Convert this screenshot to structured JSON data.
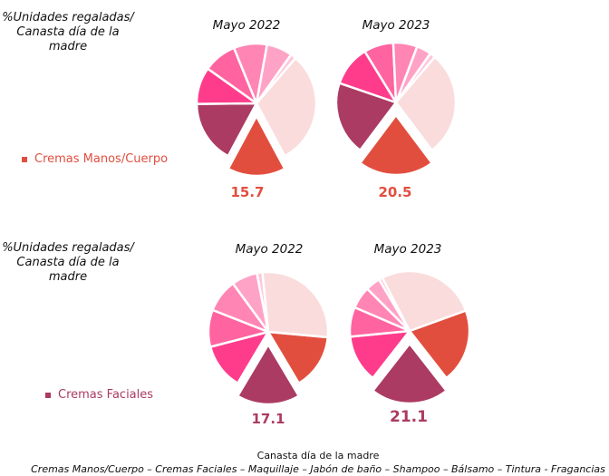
{
  "colors": {
    "Cremas Manos/Cuerpo": "#e24e3e",
    "Cremas Faciales": "#ab3b63",
    "Maquillaje": "#ff3c8c",
    "Jabón de baño": "#ff63a0",
    "Shampoo": "#ff85b4",
    "Bálsamo": "#ffa3c6",
    "Tintura": "#ffc7dd",
    "Fragancias": "#fadcdc"
  },
  "panels": [
    {
      "side_title": "%Unidades regaladas/ Canasta día de la madre",
      "legend": "Cremas Manos/Cuerpo"
    },
    {
      "side_title": "%Unidades regaladas/ Canasta día de la madre",
      "legend": "Cremas Faciales"
    }
  ],
  "footer": {
    "title": "Canasta día de la madre",
    "items": "Cremas Manos/Cuerpo – Cremas Faciales – Maquillaje – Jabón de baño – Shampoo – Bálsamo – Tintura - Fragancias"
  },
  "chart_data": [
    {
      "type": "pie",
      "title": "Mayo 2022",
      "highlight": "Cremas Manos/Cuerpo",
      "highlight_label": "15.7",
      "categories": [
        "Cremas Manos/Cuerpo",
        "Cremas Faciales",
        "Maquillaje",
        "Jabón de baño",
        "Shampoo",
        "Bálsamo",
        "Tintura",
        "Fragancias"
      ],
      "values": [
        15.7,
        17,
        10,
        9,
        9,
        7,
        1.5,
        30.8
      ]
    },
    {
      "type": "pie",
      "title": "Mayo 2023",
      "highlight": "Cremas Manos/Cuerpo",
      "highlight_label": "20.5",
      "categories": [
        "Cremas Manos/Cuerpo",
        "Cremas Faciales",
        "Maquillaje",
        "Jabón de baño",
        "Shampoo",
        "Bálsamo",
        "Tintura",
        "Fragancias"
      ],
      "values": [
        20.5,
        20,
        11,
        8,
        6.5,
        4,
        1.5,
        28.5
      ]
    },
    {
      "type": "pie",
      "title": "Mayo 2022",
      "highlight": "Cremas Faciales",
      "highlight_label": "17.1",
      "categories": [
        "Cremas Manos/Cuerpo",
        "Cremas Faciales",
        "Maquillaje",
        "Jabón de baño",
        "Shampoo",
        "Bálsamo",
        "Tintura",
        "Fragancias"
      ],
      "values": [
        15,
        17.1,
        12.4,
        10,
        9,
        7,
        1.5,
        28
      ]
    },
    {
      "type": "pie",
      "title": "Mayo 2023",
      "highlight": "Cremas Faciales",
      "highlight_label": "21.1",
      "categories": [
        "Cremas Manos/Cuerpo",
        "Cremas Faciales",
        "Maquillaje",
        "Jabón de baño",
        "Shampoo",
        "Bálsamo",
        "Tintura",
        "Fragancias"
      ],
      "values": [
        20,
        21.1,
        12.9,
        8,
        6,
        4,
        1,
        27
      ]
    }
  ]
}
